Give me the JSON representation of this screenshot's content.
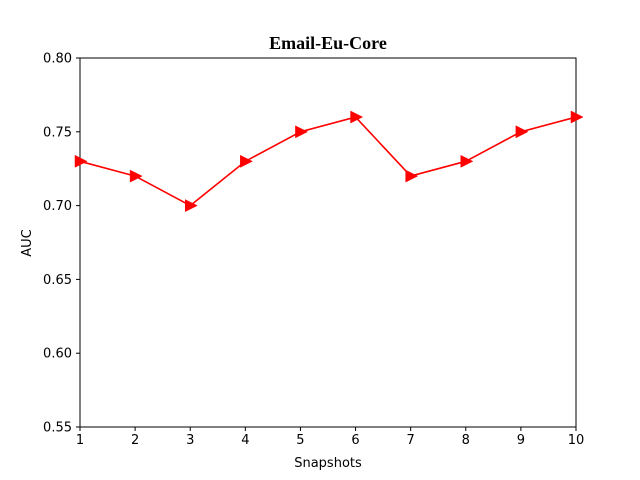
{
  "chart_data": {
    "type": "line",
    "title": "Email-Eu-Core",
    "xlabel": "Snapshots",
    "ylabel": "AUC",
    "x": [
      1,
      2,
      3,
      4,
      5,
      6,
      7,
      8,
      9,
      10
    ],
    "series": [
      {
        "name": "AUC",
        "values": [
          0.73,
          0.72,
          0.7,
          0.73,
          0.75,
          0.76,
          0.72,
          0.73,
          0.75,
          0.76
        ],
        "color": "#ff0000",
        "marker": "triangle-right"
      }
    ],
    "xlim": [
      1,
      10
    ],
    "ylim": [
      0.55,
      0.8
    ],
    "xticks": [
      "1",
      "2",
      "3",
      "4",
      "5",
      "6",
      "7",
      "8",
      "9",
      "10"
    ],
    "yticks": [
      "0.55",
      "0.60",
      "0.65",
      "0.70",
      "0.75",
      "0.80"
    ],
    "grid": false,
    "legend": "none"
  }
}
